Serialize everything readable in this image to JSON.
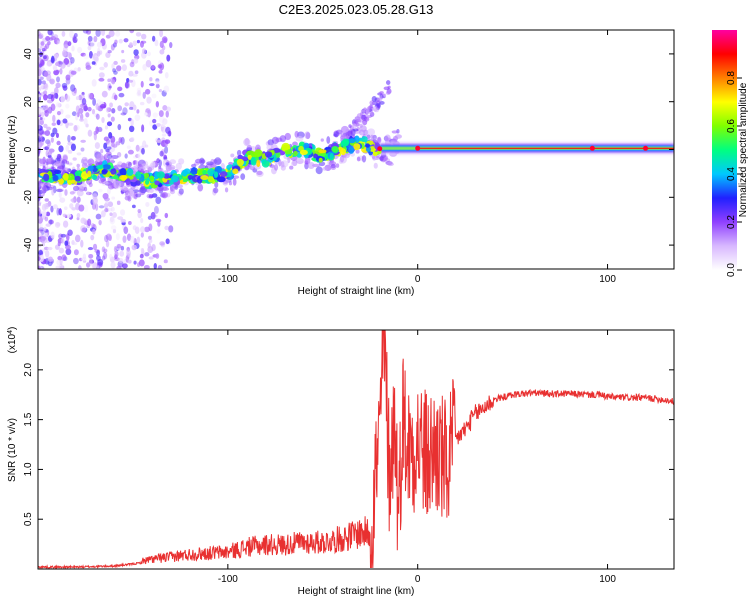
{
  "title": "C2E3.2025.023.05.28.G13",
  "chart_data": [
    {
      "type": "heatmap",
      "xlabel": "Height of straight line (km)",
      "ylabel": "Frequency (Hz)",
      "xlim": [
        -200,
        135
      ],
      "ylim": [
        -50,
        50
      ],
      "xticks": [
        -100,
        0,
        100
      ],
      "yticks": [
        -40,
        -20,
        0,
        20,
        40
      ],
      "colorbar": {
        "label": "Normalized spectral amplitude",
        "range": [
          0,
          1
        ],
        "ticks": [
          0.0,
          0.2,
          0.4,
          0.6,
          0.8
        ],
        "colors": [
          "#ffffff",
          "#d8b8ff",
          "#9040ff",
          "#2020ff",
          "#00c8ff",
          "#00ff80",
          "#80ff00",
          "#ffff00",
          "#ff8000",
          "#ff0000",
          "#ff00a0"
        ]
      },
      "ridge": {
        "x": [
          -195,
          -180,
          -165,
          -150,
          -140,
          -130,
          -120,
          -110,
          -100,
          -90,
          -80,
          -70,
          -60,
          -50,
          -40,
          -30,
          -22,
          -15,
          -10,
          -5,
          0,
          20,
          40,
          60,
          80,
          100,
          120,
          135
        ],
        "freq": [
          -11,
          -12,
          -8,
          -12,
          -13,
          -12,
          -11,
          -11,
          -10,
          -3,
          -4,
          -1,
          0,
          -3,
          1,
          3,
          0,
          0,
          1,
          0,
          0,
          0,
          0,
          0,
          0,
          0,
          0,
          0
        ]
      }
    },
    {
      "type": "line",
      "xlabel": "Height of straight line (km)",
      "ylabel": "SNR (10 * v/v)",
      "scale_label": "(x10",
      "scale_exp": "4",
      "xlim": [
        -200,
        135
      ],
      "ylim": [
        0,
        2.4
      ],
      "xticks": [
        -100,
        0,
        100
      ],
      "yticks": [
        0.5,
        1.0,
        1.5,
        2.0
      ],
      "ytick_labels": [
        "0.5",
        "1.0",
        "1.5",
        "2.0"
      ],
      "line_color": "#e83030",
      "series": [
        {
          "x": [
            -200,
            -180,
            -160,
            -150,
            -140,
            -130,
            -120,
            -110,
            -100,
            -90,
            -80,
            -70,
            -60,
            -50,
            -40,
            -30,
            -25,
            -22,
            -20,
            -18,
            -15,
            -12,
            -10,
            -8,
            -5,
            0,
            5,
            10,
            15,
            20,
            25,
            30,
            40,
            50,
            60,
            70,
            80,
            90,
            95,
            100,
            110,
            120,
            130,
            135
          ],
          "y": [
            0.02,
            0.02,
            0.03,
            0.05,
            0.08,
            0.1,
            0.12,
            0.13,
            0.14,
            0.18,
            0.2,
            0.2,
            0.22,
            0.22,
            0.25,
            0.3,
            0.3,
            1.0,
            1.3,
            2.4,
            1.0,
            1.5,
            0.5,
            1.6,
            1.2,
            1.3,
            1.1,
            1.2,
            1.0,
            1.3,
            1.4,
            1.55,
            1.7,
            1.75,
            1.77,
            1.76,
            1.76,
            1.75,
            1.75,
            1.73,
            1.72,
            1.72,
            1.7,
            1.68
          ]
        }
      ]
    }
  ]
}
